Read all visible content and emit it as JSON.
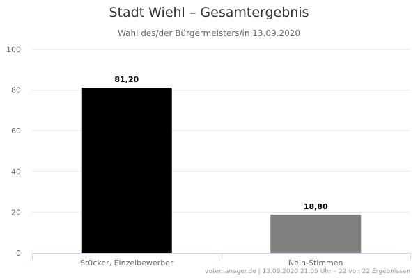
{
  "chart_data": {
    "type": "bar",
    "title": "Stadt Wiehl – Gesamtergebnis",
    "subtitle": "Wahl des/der Bürgermeisters/in 13.09.2020",
    "categories": [
      "Stücker, Einzelbewerber",
      "Nein-Stimmen"
    ],
    "values": [
      81.2,
      18.8
    ],
    "value_labels": [
      "81,20",
      "18,80"
    ],
    "colors": [
      "#000000",
      "#808080"
    ],
    "ylim": [
      0,
      100
    ],
    "yticks": [
      0,
      20,
      40,
      60,
      80,
      100
    ],
    "grid": true,
    "legend": "none"
  },
  "credits": "votemanager.de | 13.09.2020 21:05 Uhr – 22 von 22 Ergebnissen"
}
